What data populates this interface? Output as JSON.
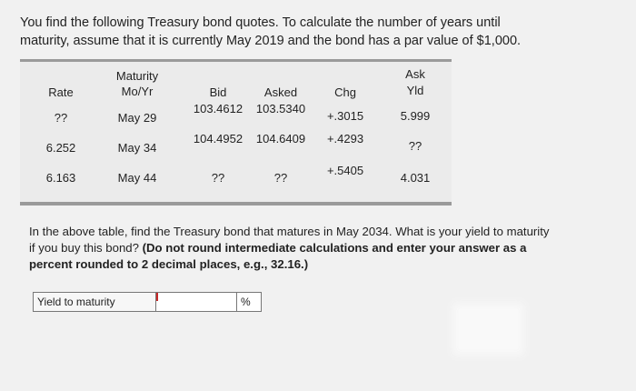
{
  "intro": [
    "You find the following Treasury bond quotes. To calculate the number of years until",
    "maturity, assume that it is currently May 2019 and the bond has a par value of $1,000."
  ],
  "table": {
    "headers": [
      [
        "Rate"
      ],
      [
        "Maturity",
        "Mo/Yr"
      ],
      [
        "Bid"
      ],
      [
        "Asked"
      ],
      [
        "Chg"
      ],
      [
        "Ask",
        "Yld"
      ]
    ],
    "rows": [
      [
        "??",
        "May 29",
        "103.4612",
        "103.5340",
        "+.3015",
        "5.999"
      ],
      [
        "6.252",
        "May 34",
        "104.4952",
        "104.6409",
        "+.4293",
        "??"
      ],
      [
        "6.163",
        "May 44",
        "??",
        "??",
        "+.5405",
        "4.031"
      ]
    ]
  },
  "question": {
    "text": "In the above table, find the Treasury bond that matures in May 2034. What is your yield to maturity if you buy this bond?",
    "instruction": "(Do not round intermediate calculations and enter your answer as a percent rounded to 2 decimal places, e.g., 32.16.)"
  },
  "answer": {
    "label": "Yield to maturity",
    "unit": "%"
  }
}
